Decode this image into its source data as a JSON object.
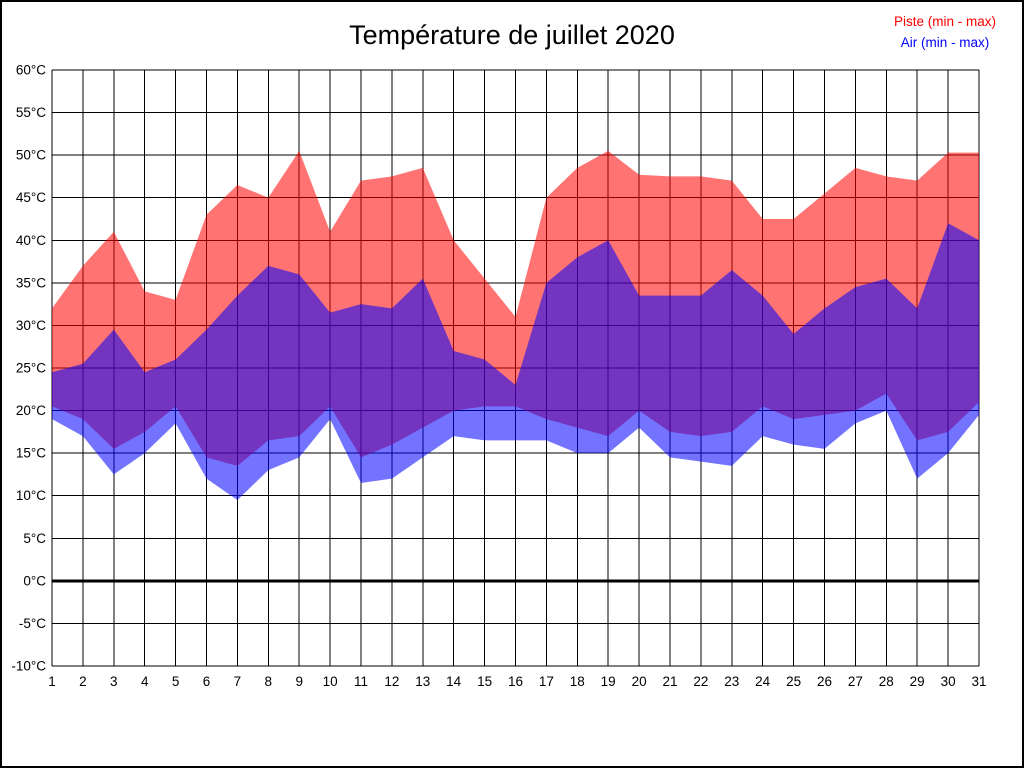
{
  "title": "Température de juillet 2020",
  "legend": {
    "position": "top-right",
    "items": [
      {
        "label": "Piste (min - max)",
        "color": "#ff0000"
      },
      {
        "label": "Air (min - max)",
        "color": "#0000ff"
      }
    ]
  },
  "chart_data": {
    "type": "area",
    "title": "Température de juillet 2020",
    "x": [
      1,
      2,
      3,
      4,
      5,
      6,
      7,
      8,
      9,
      10,
      11,
      12,
      13,
      14,
      15,
      16,
      17,
      18,
      19,
      20,
      21,
      22,
      23,
      24,
      25,
      26,
      27,
      28,
      29,
      30,
      31
    ],
    "bands": [
      {
        "name": "Piste (min - max)",
        "color": "#ff0000",
        "alpha": 0.55,
        "max": [
          32,
          37,
          41,
          34,
          33,
          43,
          46.5,
          45,
          50.5,
          41,
          47,
          47.5,
          48.5,
          40,
          35.5,
          31,
          45,
          48.5,
          50.5,
          47.7,
          47.5,
          47.5,
          47,
          42.5,
          42.5,
          45.5,
          48.5,
          47.5,
          47,
          50.3,
          50.3
        ],
        "min": [
          20.5,
          19,
          15.5,
          17.5,
          20.5,
          14.5,
          13.5,
          16.5,
          17,
          20.5,
          14.5,
          16,
          18,
          20,
          20.5,
          20.5,
          19,
          18,
          17,
          20,
          17.5,
          17,
          17.5,
          20.5,
          19,
          19.5,
          20,
          22,
          16.5,
          17.5,
          21
        ]
      },
      {
        "name": "Air (min - max)",
        "color": "#0000ff",
        "alpha": 0.55,
        "max": [
          24.5,
          25.5,
          29.5,
          24.5,
          26,
          29.5,
          33.5,
          37,
          36,
          31.5,
          32.5,
          32,
          35.5,
          27,
          26,
          23,
          35,
          38,
          40,
          33.5,
          33.5,
          33.5,
          36.5,
          33.5,
          29,
          32,
          34.5,
          35.5,
          32,
          42,
          40
        ],
        "min": [
          19,
          17,
          12.5,
          15,
          18.5,
          12,
          9.5,
          13,
          14.5,
          19,
          11.5,
          12,
          14.5,
          17,
          16.5,
          16.5,
          16.5,
          15,
          15,
          18,
          14.5,
          14,
          13.5,
          17,
          16,
          15.5,
          18.5,
          20,
          12,
          15,
          19.5
        ]
      }
    ],
    "ylim": [
      -10,
      60
    ],
    "ytick_step": 5,
    "ytick_suffix": "°C",
    "y_ticks": [
      "60°C",
      "55°C",
      "50°C",
      "45°C",
      "40°C",
      "35°C",
      "30°C",
      "25°C",
      "20°C",
      "15°C",
      "10°C",
      "5°C",
      "0°C",
      "-5°C",
      "-10°C"
    ],
    "x_ticks": [
      "1",
      "2",
      "3",
      "4",
      "5",
      "6",
      "7",
      "8",
      "9",
      "10",
      "11",
      "12",
      "13",
      "14",
      "15",
      "16",
      "17",
      "18",
      "19",
      "20",
      "21",
      "22",
      "23",
      "24",
      "25",
      "26",
      "27",
      "28",
      "29",
      "30",
      "31"
    ],
    "grid": true,
    "zero_line_bold": true,
    "legend_position": "top-right"
  }
}
